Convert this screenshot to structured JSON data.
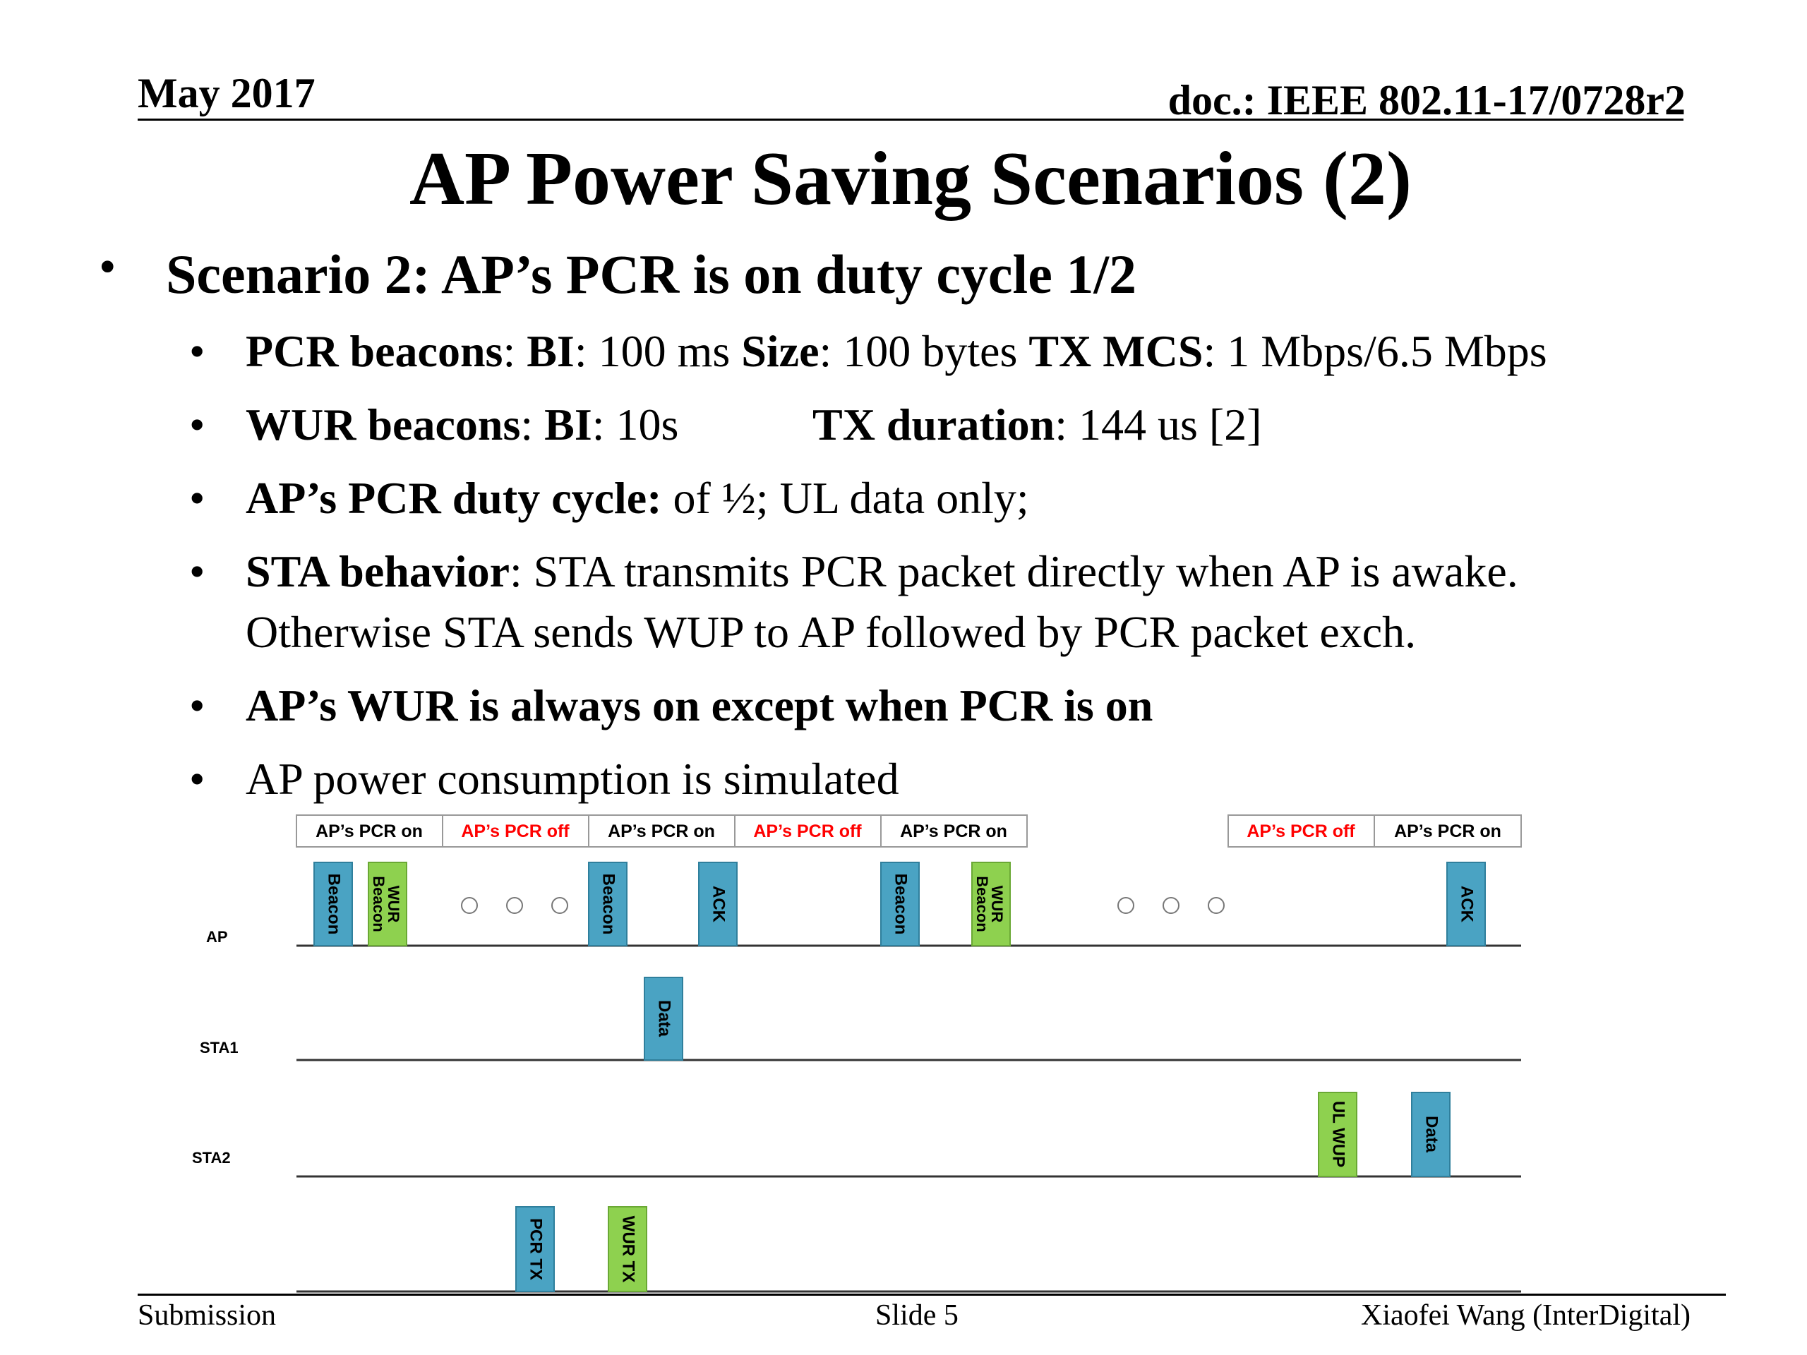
{
  "header": {
    "date": "May 2017",
    "doc": "doc.: IEEE 802.11-17/0728r2"
  },
  "title": "AP Power Saving Scenarios (2)",
  "bullets": {
    "main": "Scenario 2: AP’s PCR is on duty cycle 1/2",
    "b1": {
      "k1": "PCR beacons",
      "sep1": ": ",
      "k2": "BI",
      "v2": ": 100 ms  ",
      "k3": "Size",
      "v3": ": 100 bytes  ",
      "k4": "TX MCS",
      "v4": ": 1 Mbps/6.5 Mbps"
    },
    "b2": {
      "k1": "WUR beacons",
      "sep1": ": ",
      "k2": "BI",
      "v2": ": 10s",
      "k3": "TX duration",
      "v3": ": 144 us [2]"
    },
    "b3": {
      "k1": "AP’s PCR duty cycle:",
      "v1": " of ½; UL data only;"
    },
    "b4": {
      "k1": "STA behavior",
      "v1": ": STA transmits PCR packet directly when AP is awake.",
      "line2": "Otherwise STA sends WUP to AP followed by PCR packet exch."
    },
    "b5": " AP’s WUR is always on except when PCR is on",
    "b6": "AP power consumption is simulated",
    "bullet_char": "•"
  },
  "timeline": {
    "state_labels": {
      "on": "AP’s PCR on",
      "off": "AP’s PCR off"
    },
    "states_group1": [
      "on",
      "off",
      "on",
      "off",
      "on"
    ],
    "states_group2": [
      "off",
      "on"
    ],
    "rows": [
      "AP",
      "STA1",
      "STA2"
    ],
    "blocks": {
      "beacon": "Beacon",
      "wur_beacon_1": "WUR",
      "wur_beacon_2": "Beacon",
      "ack": "ACK",
      "data": "Data",
      "ul_wup": "UL WUP",
      "pcr_tx": "PCR TX",
      "wur_tx": "WUR TX"
    },
    "colors": {
      "blue": "#4aa3c3",
      "green": "#8ed14f",
      "off_text": "#ff0000",
      "on_text": "#000000"
    }
  },
  "footer": {
    "left": "Submission",
    "center": "Slide 5",
    "right": "Xiaofei Wang (InterDigital)"
  }
}
